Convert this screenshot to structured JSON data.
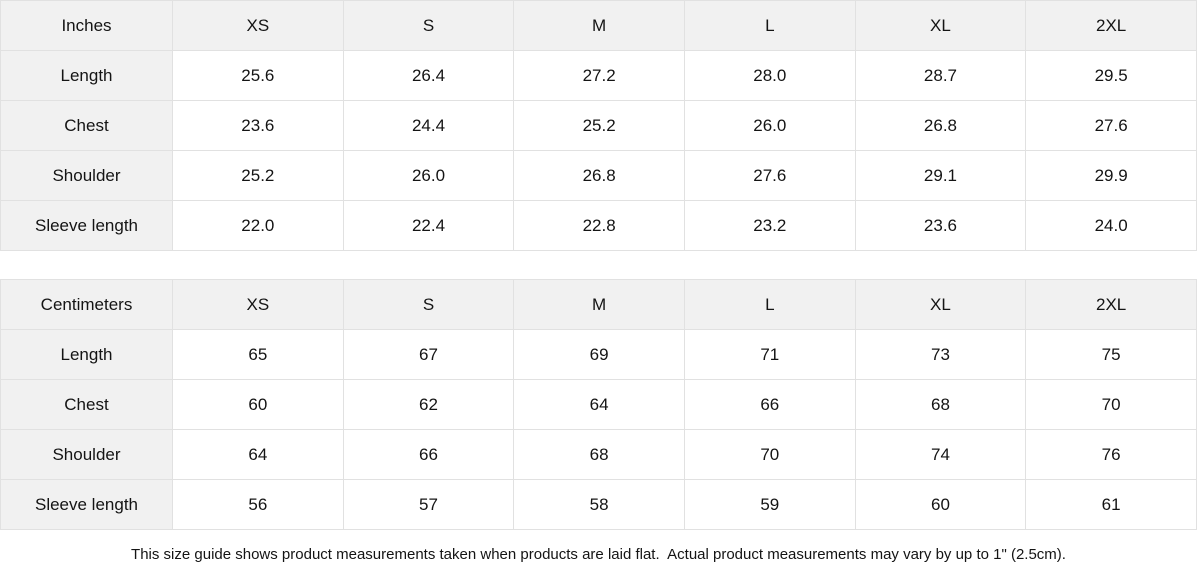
{
  "colors": {
    "header_bg": "#f1f1f1",
    "border": "#e1e1e1",
    "text": "#141414",
    "background": "#ffffff"
  },
  "tables": [
    {
      "unit_label": "Inches",
      "sizes": [
        "XS",
        "S",
        "M",
        "L",
        "XL",
        "2XL"
      ],
      "rows": [
        {
          "label": "Length",
          "values": [
            "25.6",
            "26.4",
            "27.2",
            "28.0",
            "28.7",
            "29.5"
          ]
        },
        {
          "label": "Chest",
          "values": [
            "23.6",
            "24.4",
            "25.2",
            "26.0",
            "26.8",
            "27.6"
          ]
        },
        {
          "label": "Shoulder",
          "values": [
            "25.2",
            "26.0",
            "26.8",
            "27.6",
            "29.1",
            "29.9"
          ]
        },
        {
          "label": "Sleeve length",
          "values": [
            "22.0",
            "22.4",
            "22.8",
            "23.2",
            "23.6",
            "24.0"
          ]
        }
      ]
    },
    {
      "unit_label": "Centimeters",
      "sizes": [
        "XS",
        "S",
        "M",
        "L",
        "XL",
        "2XL"
      ],
      "rows": [
        {
          "label": "Length",
          "values": [
            "65",
            "67",
            "69",
            "71",
            "73",
            "75"
          ]
        },
        {
          "label": "Chest",
          "values": [
            "60",
            "62",
            "64",
            "66",
            "68",
            "70"
          ]
        },
        {
          "label": "Shoulder",
          "values": [
            "64",
            "66",
            "68",
            "70",
            "74",
            "76"
          ]
        },
        {
          "label": "Sleeve length",
          "values": [
            "56",
            "57",
            "58",
            "59",
            "60",
            "61"
          ]
        }
      ]
    }
  ],
  "footer": {
    "note": "This size guide shows product measurements taken when products are laid flat.  Actual product measurements may vary by up to 1\" (2.5cm)."
  }
}
